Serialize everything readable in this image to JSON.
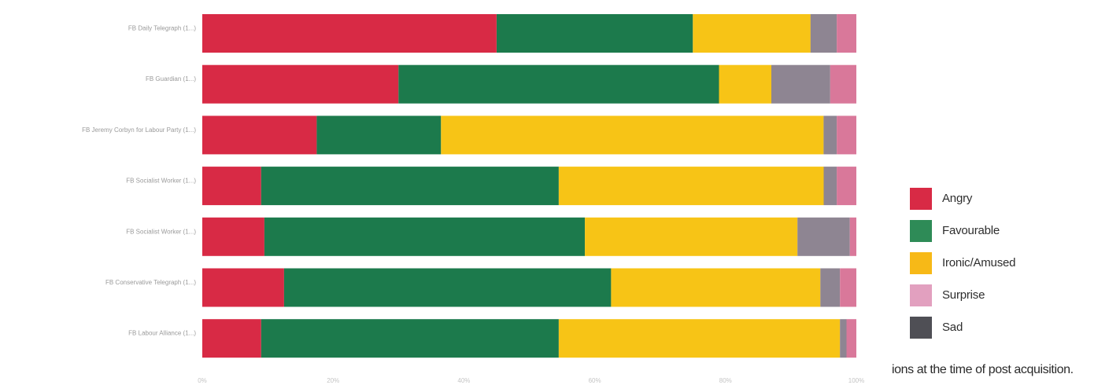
{
  "chart_data": {
    "type": "bar",
    "orientation": "horizontal",
    "stacked": true,
    "normalized": true,
    "categories": [
      "FB Daily Telegraph (1...)",
      "FB Guardian (1...)",
      "FB Jeremy Corbyn for Labour Party (1...)",
      "FB Socialist Worker (1...)",
      "FB Socialist Worker (1...)",
      "FB Conservative Telegraph (1...)",
      "FB Labour Alliance (1...)"
    ],
    "series": [
      {
        "name": "Angry",
        "color": "#d82a45",
        "values": [
          0.45,
          0.3,
          0.175,
          0.09,
          0.095,
          0.125,
          0.09
        ]
      },
      {
        "name": "Favourable",
        "color": "#1c7a4c",
        "values": [
          0.3,
          0.49,
          0.19,
          0.455,
          0.49,
          0.5,
          0.455
        ]
      },
      {
        "name": "Ironic/Amused",
        "color": "#f7c416",
        "values": [
          0.18,
          0.08,
          0.585,
          0.405,
          0.325,
          0.32,
          0.43
        ]
      },
      {
        "name": "Sad",
        "color": "#8e8592",
        "values": [
          0.04,
          0.09,
          0.02,
          0.02,
          0.08,
          0.03,
          0.01
        ]
      },
      {
        "name": "Surprise",
        "color": "#d9789a",
        "values": [
          0.03,
          0.04,
          0.03,
          0.03,
          0.01,
          0.025,
          0.015
        ]
      }
    ],
    "xlim": [
      0,
      1
    ],
    "x_ticks": [
      "0%",
      "20%",
      "40%",
      "60%",
      "80%",
      "100%"
    ],
    "legend": {
      "placement": "right",
      "items": [
        {
          "name": "Angry",
          "color": "#d82a45"
        },
        {
          "name": "Favourable",
          "color": "#2e8b57"
        },
        {
          "name": "Ironic/Amused",
          "color": "#f7b917"
        },
        {
          "name": "Surprise",
          "color": "#e2a0bf"
        },
        {
          "name": "Sad",
          "color": "#4f4f55"
        }
      ]
    },
    "grid": false,
    "title": "",
    "xlabel": "",
    "ylabel": ""
  },
  "caption": "ions at the time of post acquisition."
}
